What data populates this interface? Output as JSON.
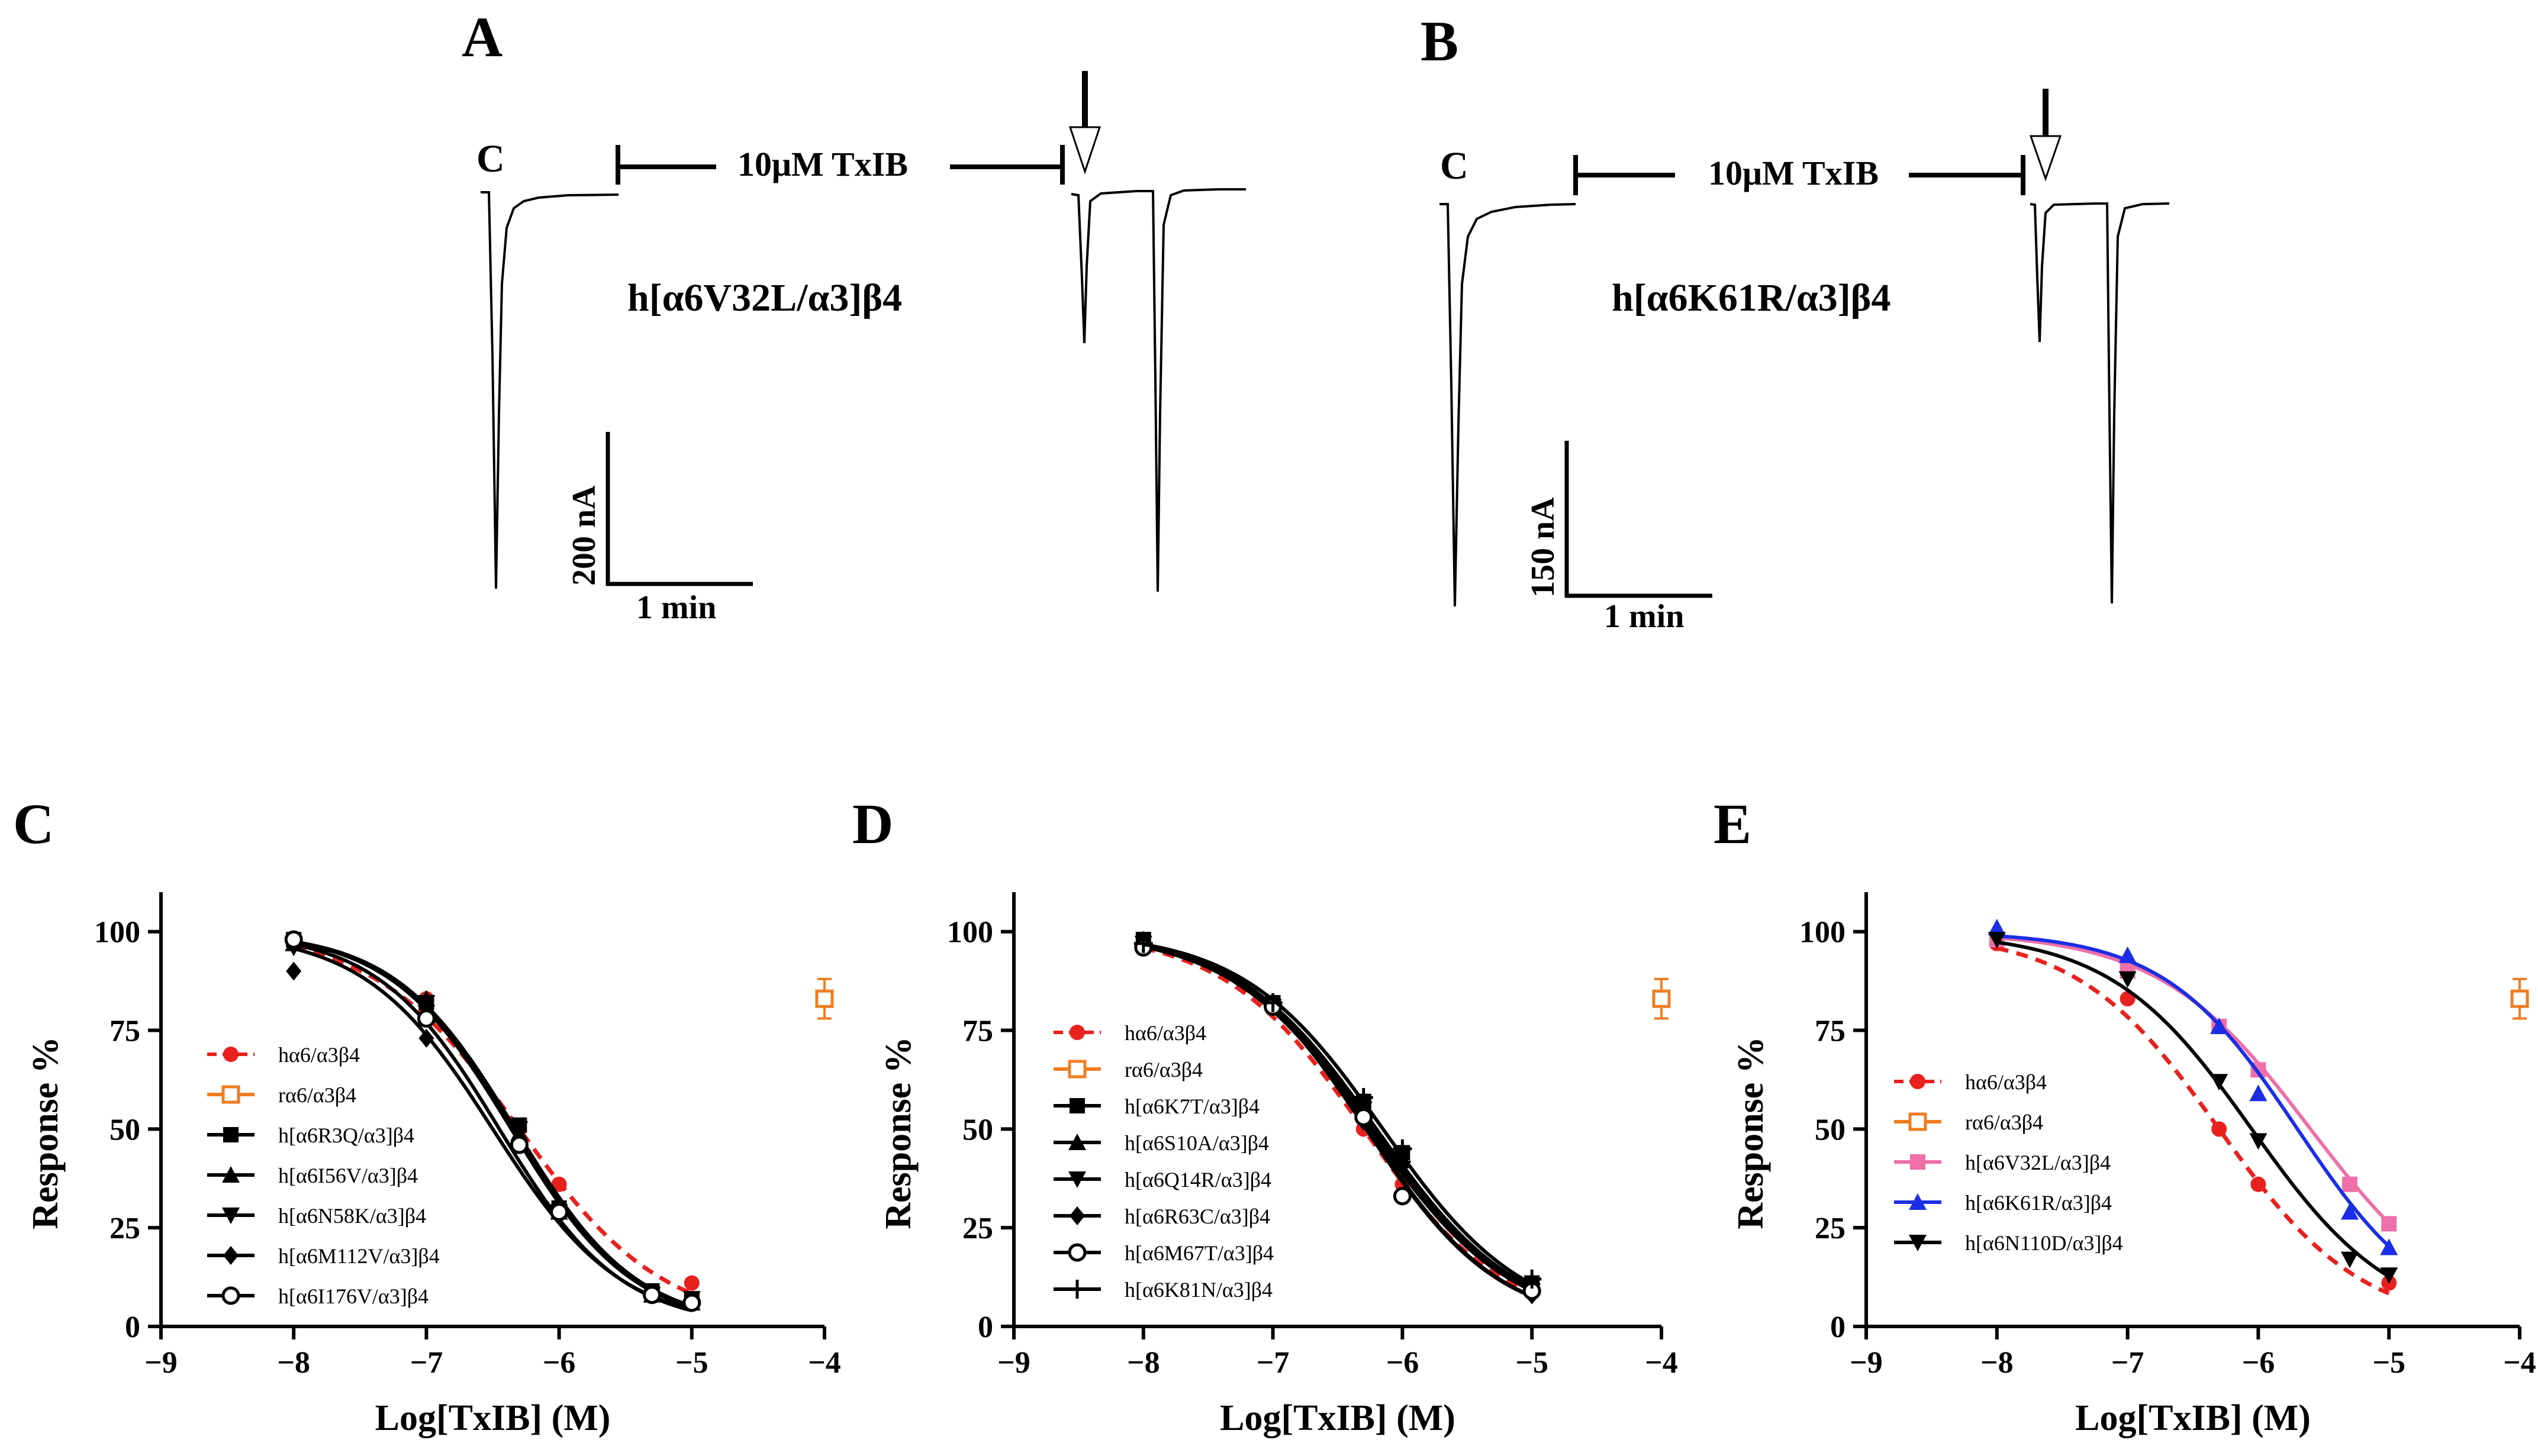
{
  "panels": {
    "A": {
      "letter": "A",
      "control_label": "C",
      "drug_label": "10μM TxIB",
      "receptor_title": "h[α6V32L/α3]β4",
      "scale_current": "200 nA",
      "scale_time": "1 min"
    },
    "B": {
      "letter": "B",
      "control_label": "C",
      "drug_label": "10μM TxIB",
      "receptor_title": "h[α6K61R/α3]β4",
      "scale_current": "150 nA",
      "scale_time": "1 min"
    }
  },
  "colors": {
    "black": "#000000",
    "red": "#e8211e",
    "orange": "#ef7d22",
    "pink": "#ef6fa8",
    "blue": "#1b2ee6"
  },
  "chart_data": [
    {
      "panel": "C",
      "type": "scatter",
      "xlabel": "Log[TxIB] (M)",
      "ylabel": "Response %",
      "xlim": [
        -9,
        -4
      ],
      "ylim": [
        0,
        110
      ],
      "xticks": [
        -9,
        -8,
        -7,
        -6,
        -5,
        -4
      ],
      "yticks": [
        0,
        25,
        50,
        75,
        100
      ],
      "x": [
        -8,
        -7,
        -6.3,
        -6,
        -5.3,
        -5
      ],
      "series": [
        {
          "name": "hα6/α3β4",
          "color": "#e8211e",
          "marker": "circle",
          "line": "dashed",
          "values": [
            97,
            83,
            50,
            36,
            9,
            11
          ],
          "fit": {
            "ic50": -6.3,
            "hill": 0.8,
            "top": 100,
            "bottom": 0
          }
        },
        {
          "name": "rα6/α3β4",
          "color": "#ef7d22",
          "marker": "open-square",
          "line": "none",
          "x_override": [
            -4
          ],
          "values": [
            83
          ],
          "err": [
            5
          ]
        },
        {
          "name": "h[α6R3Q/α3]β4",
          "color": "#000000",
          "marker": "square",
          "line": "solid",
          "values": [
            98,
            82,
            51,
            30,
            9,
            7
          ],
          "fit": {
            "ic50": -6.33,
            "hill": 0.95,
            "top": 100,
            "bottom": 0
          }
        },
        {
          "name": "h[α6I56V/α3]β4",
          "color": "#000000",
          "marker": "triangle-up",
          "line": "solid",
          "values": [
            97,
            83,
            49,
            29,
            8,
            6
          ],
          "fit": {
            "ic50": -6.36,
            "hill": 0.95,
            "top": 100,
            "bottom": 0
          }
        },
        {
          "name": "h[α6N58K/α3]β4",
          "color": "#000000",
          "marker": "triangle-down",
          "line": "solid",
          "values": [
            96,
            82,
            50,
            29,
            8,
            7
          ],
          "fit": {
            "ic50": -6.35,
            "hill": 0.95,
            "top": 100,
            "bottom": 0
          }
        },
        {
          "name": "h[α6M112V/α3]β4",
          "color": "#000000",
          "marker": "diamond",
          "line": "solid",
          "values": [
            90,
            73,
            47,
            30,
            8,
            6
          ],
          "fit": {
            "ic50": -6.5,
            "hill": 0.9,
            "top": 100,
            "bottom": 0
          }
        },
        {
          "name": "h[α6I176V/α3]β4",
          "color": "#000000",
          "marker": "open-circle",
          "line": "solid",
          "values": [
            98,
            78,
            46,
            29,
            8,
            6
          ],
          "fit": {
            "ic50": -6.45,
            "hill": 0.95,
            "top": 100,
            "bottom": 0
          }
        }
      ]
    },
    {
      "panel": "D",
      "type": "scatter",
      "xlabel": "Log[TxIB] (M)",
      "ylabel": "Response %",
      "xlim": [
        -9,
        -4
      ],
      "ylim": [
        0,
        110
      ],
      "xticks": [
        -9,
        -8,
        -7,
        -6,
        -5,
        -4
      ],
      "yticks": [
        0,
        25,
        50,
        75,
        100
      ],
      "x": [
        -8,
        -7,
        -6.3,
        -6,
        -5
      ],
      "series": [
        {
          "name": "hα6/α3β4",
          "color": "#e8211e",
          "marker": "circle",
          "line": "dashed",
          "values": [
            97,
            82,
            50,
            36,
            10
          ],
          "fit": {
            "ic50": -6.3,
            "hill": 0.8,
            "top": 100,
            "bottom": 0
          }
        },
        {
          "name": "rα6/α3β4",
          "color": "#ef7d22",
          "marker": "open-square",
          "line": "none",
          "x_override": [
            -4
          ],
          "values": [
            83
          ],
          "err": [
            5
          ]
        },
        {
          "name": "h[α6K7T/α3]β4",
          "color": "#000000",
          "marker": "square",
          "line": "solid",
          "values": [
            98,
            82,
            57,
            44,
            11
          ],
          "fit": {
            "ic50": -6.2,
            "hill": 0.8,
            "top": 100,
            "bottom": 0
          }
        },
        {
          "name": "h[α6S10A/α3]β4",
          "color": "#000000",
          "marker": "triangle-up",
          "line": "solid",
          "values": [
            98,
            82,
            55,
            42,
            10
          ],
          "fit": {
            "ic50": -6.23,
            "hill": 0.8,
            "top": 100,
            "bottom": 0
          }
        },
        {
          "name": "h[α6Q14R/α3]β4",
          "color": "#000000",
          "marker": "triangle-down",
          "line": "solid",
          "values": [
            97,
            81,
            55,
            40,
            9
          ],
          "fit": {
            "ic50": -6.25,
            "hill": 0.8,
            "top": 100,
            "bottom": 0
          }
        },
        {
          "name": "h[α6R63C/α3]β4",
          "color": "#000000",
          "marker": "diamond",
          "line": "solid",
          "values": [
            97,
            81,
            52,
            33,
            8
          ],
          "fit": {
            "ic50": -6.28,
            "hill": 0.85,
            "top": 100,
            "bottom": 0
          }
        },
        {
          "name": "h[α6M67T/α3]β4",
          "color": "#000000",
          "marker": "open-circle",
          "line": "solid",
          "values": [
            96,
            81,
            53,
            33,
            9
          ],
          "fit": {
            "ic50": -6.27,
            "hill": 0.85,
            "top": 100,
            "bottom": 0
          }
        },
        {
          "name": "h[α6K81N/α3]β4",
          "color": "#000000",
          "marker": "plus",
          "line": "solid",
          "values": [
            97,
            82,
            58,
            45,
            12
          ],
          "fit": {
            "ic50": -6.15,
            "hill": 0.8,
            "top": 100,
            "bottom": 0
          }
        }
      ]
    },
    {
      "panel": "E",
      "type": "scatter",
      "xlabel": "Log[TxIB] (M)",
      "ylabel": "Response %",
      "xlim": [
        -9,
        -4
      ],
      "ylim": [
        0,
        110
      ],
      "xticks": [
        -9,
        -8,
        -7,
        -6,
        -5,
        -4
      ],
      "yticks": [
        0,
        25,
        50,
        75,
        100
      ],
      "x": [
        -8,
        -7,
        -6.3,
        -6,
        -5.3,
        -5
      ],
      "series": [
        {
          "name": "hα6/α3β4",
          "color": "#e8211e",
          "marker": "circle",
          "line": "dashed",
          "values": [
            97,
            83,
            50,
            36,
            null,
            11
          ],
          "fit": {
            "ic50": -6.3,
            "hill": 0.8,
            "top": 100,
            "bottom": 0
          }
        },
        {
          "name": "rα6/α3β4",
          "color": "#ef7d22",
          "marker": "open-square",
          "line": "none",
          "x_override": [
            -4
          ],
          "values": [
            83
          ],
          "err": [
            5
          ]
        },
        {
          "name": "h[α6V32L/α3]β4",
          "color": "#ef6fa8",
          "marker": "square",
          "line": "solid",
          "values": [
            98,
            90,
            76,
            65,
            36,
            26
          ],
          "fit": {
            "ic50": -5.6,
            "hill": 0.75,
            "top": 100,
            "bottom": 0
          }
        },
        {
          "name": "h[α6K61R/α3]β4",
          "color": "#1b2ee6",
          "marker": "triangle-up",
          "line": "solid",
          "values": [
            101,
            94,
            76,
            59,
            29,
            20
          ],
          "fit": {
            "ic50": -5.7,
            "hill": 0.85,
            "top": 100,
            "bottom": 0
          }
        },
        {
          "name": "h[α6N110D/α3]β4",
          "color": "#000000",
          "marker": "triangle-down",
          "line": "solid",
          "values": [
            98,
            88,
            62,
            47,
            17,
            13
          ],
          "fit": {
            "ic50": -6.05,
            "hill": 0.8,
            "top": 100,
            "bottom": 0
          }
        }
      ]
    }
  ]
}
